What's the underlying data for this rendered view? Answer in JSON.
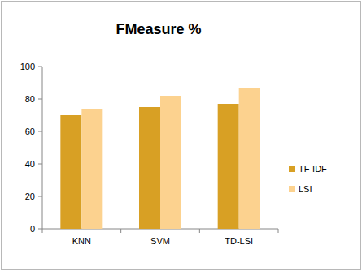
{
  "chart_data": {
    "type": "bar",
    "title": "FMeasure %",
    "categories": [
      "KNN",
      "SVM",
      "TD-LSI"
    ],
    "series": [
      {
        "name": "TF-IDF",
        "color": "#d8a024",
        "values": [
          70,
          75,
          77
        ]
      },
      {
        "name": "LSI",
        "color": "#fcd28f",
        "values": [
          74,
          82,
          87
        ]
      }
    ],
    "ylim": [
      0,
      100
    ],
    "yticks": [
      0,
      20,
      40,
      60,
      80,
      100
    ],
    "grid": false,
    "legend": "right"
  }
}
